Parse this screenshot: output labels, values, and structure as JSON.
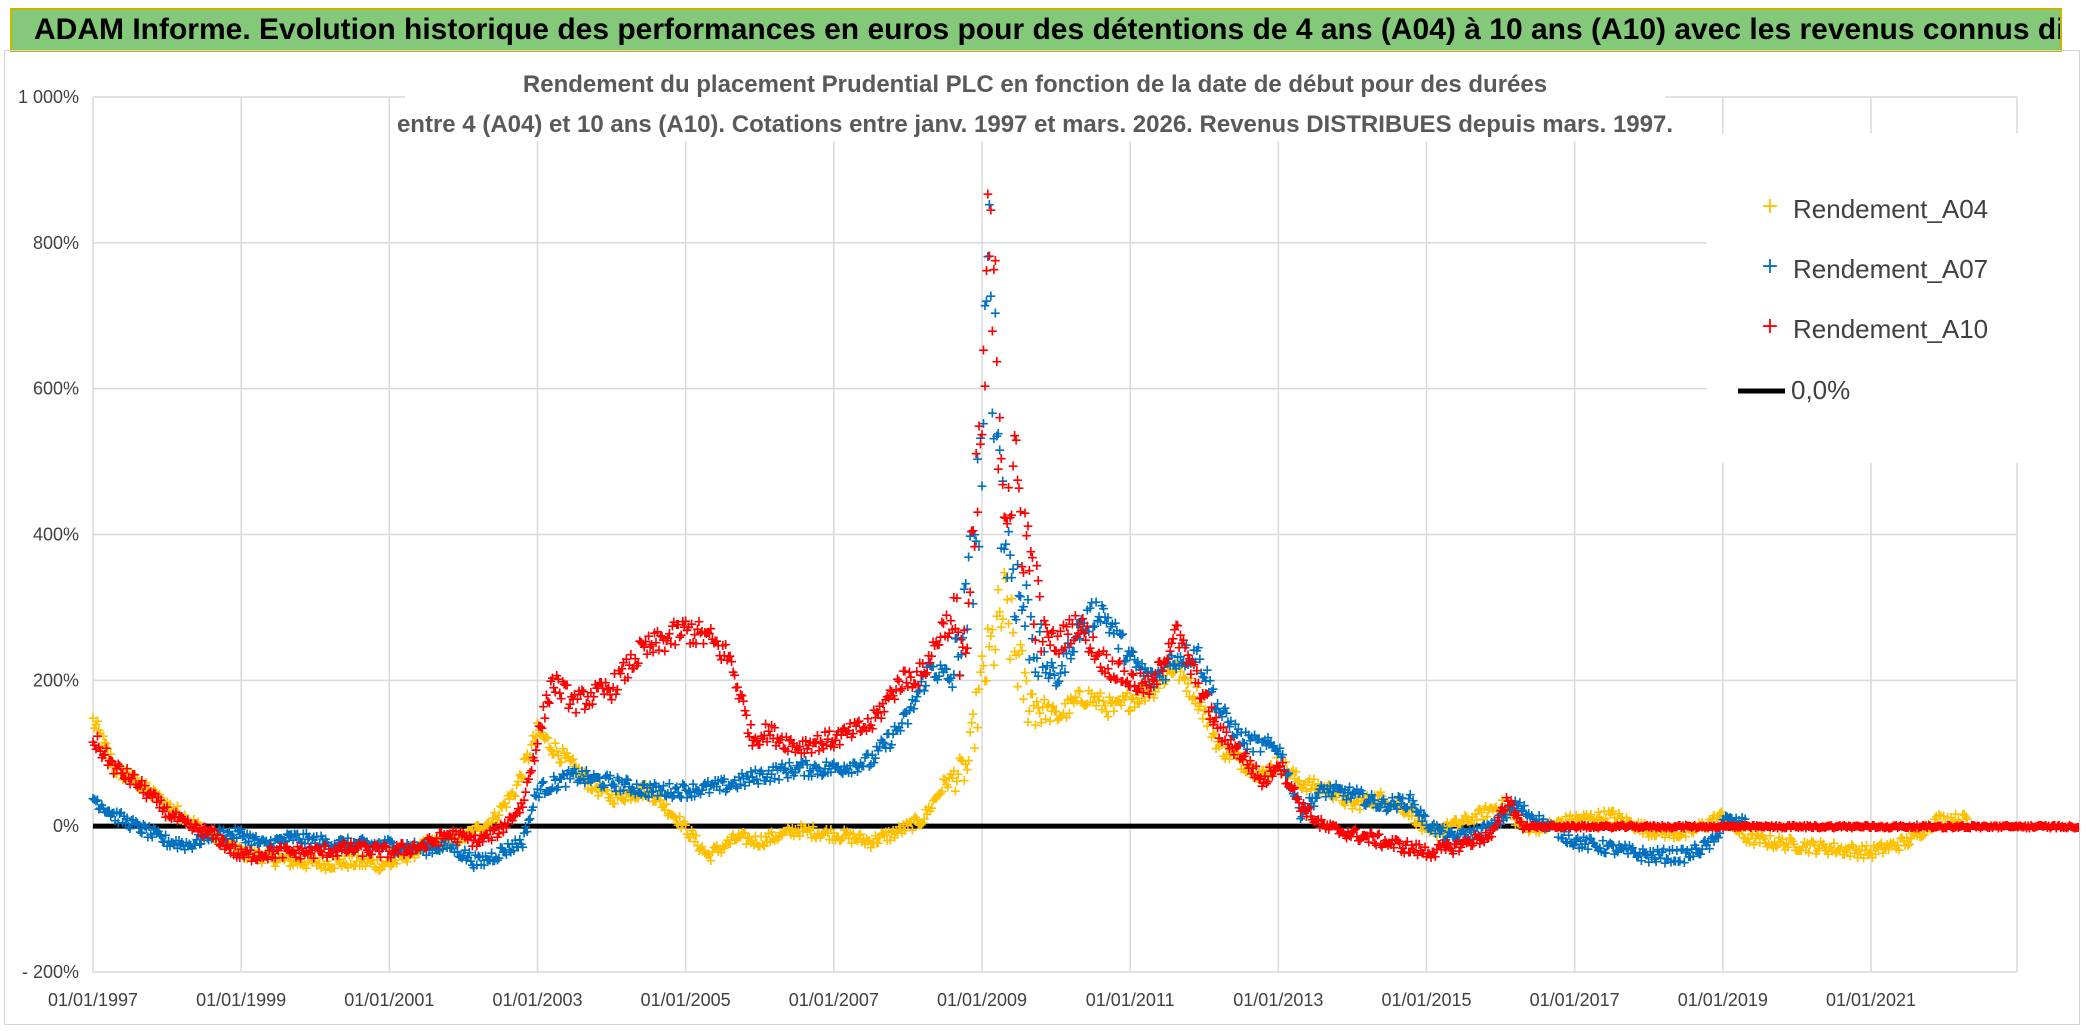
{
  "header": {
    "title": "ADAM Informe. Evolution historique des performances en euros pour des détentions de 4 ans (A04) à 10 ans (A10) avec les revenus connus distribués"
  },
  "colors": {
    "banner_bg": "#84c97a",
    "banner_border": "#c9b400",
    "A04": "#ffc000",
    "A07": "#0070c0",
    "A10": "#ff0000",
    "zero_line": "#000000",
    "grid": "#d9d9d9"
  },
  "chart_data": {
    "type": "scatter",
    "title_lines": [
      "Rendement du placement Prudential PLC en fonction de la date de début pour des durées",
      "entre 4 (A04) et 10 ans (A10). Cotations entre janv. 1997 et mars. 2026. Revenus DISTRIBUES depuis mars. 1997."
    ],
    "xlabel": "",
    "ylabel": "",
    "x_range": [
      1997.0,
      2022.0
    ],
    "ylim": [
      -200,
      1000
    ],
    "y_ticks": [
      -200,
      0,
      200,
      400,
      600,
      800,
      1000
    ],
    "y_tick_labels": [
      "- 200%",
      "0%",
      "200%",
      "400%",
      "600%",
      "800%",
      "1 000%"
    ],
    "x_ticks": [
      1997,
      1999,
      2001,
      2003,
      2005,
      2007,
      2009,
      2011,
      2013,
      2015,
      2017,
      2019,
      2021
    ],
    "x_tick_labels": [
      "01/01/1997",
      "01/01/1999",
      "01/01/2001",
      "01/01/2003",
      "01/01/2005",
      "01/01/2007",
      "01/01/2009",
      "01/01/2011",
      "01/01/2013",
      "01/01/2015",
      "01/01/2017",
      "01/01/2019",
      "01/01/2021"
    ],
    "legend_position": "top-right",
    "series": [
      {
        "name": "Rendement_A04",
        "color": "#ffc000",
        "x": [
          1997.0,
          1997.3,
          1997.6,
          1998.0,
          1998.5,
          1999.0,
          1999.5,
          2000.0,
          2000.5,
          2001.0,
          2001.5,
          2002.0,
          2002.4,
          2002.7,
          2003.0,
          2003.3,
          2003.7,
          2004.0,
          2004.5,
          2004.9,
          2005.3,
          2005.7,
          2006.0,
          2006.5,
          2007.0,
          2007.5,
          2007.8,
          2008.2,
          2008.5,
          2008.8,
          2009.0,
          2009.3,
          2009.6,
          2010.0,
          2010.4,
          2010.8,
          2011.0,
          2011.3,
          2011.6,
          2011.9,
          2012.2,
          2012.5,
          2012.8,
          2013.0,
          2013.3,
          2013.7,
          2014.0,
          2014.4,
          2014.8,
          2015.0,
          2015.3,
          2015.6,
          2016.0,
          2016.3,
          2016.6,
          2017.0,
          2017.5,
          2018.0,
          2018.5,
          2019.0,
          2019.3,
          2019.6,
          2020.0,
          2020.5,
          2021.0,
          2021.5,
          2021.9
        ],
        "values": [
          145,
          80,
          60,
          30,
          -5,
          -35,
          -45,
          -50,
          -48,
          -52,
          -25,
          -15,
          10,
          50,
          130,
          100,
          60,
          40,
          50,
          10,
          -40,
          -15,
          -20,
          -5,
          -10,
          -20,
          -10,
          10,
          60,
          80,
          200,
          300,
          180,
          150,
          180,
          160,
          175,
          190,
          220,
          180,
          110,
          90,
          70,
          90,
          60,
          50,
          30,
          40,
          20,
          -10,
          0,
          10,
          30,
          0,
          0,
          10,
          15,
          -5,
          -10,
          15,
          -15,
          -20,
          -25,
          -30,
          -35,
          -20,
          10
        ]
      },
      {
        "name": "Rendement_A07",
        "color": "#0070c0",
        "x": [
          1997.0,
          1997.3,
          1997.6,
          1998.0,
          1998.3,
          1998.6,
          1999.0,
          1999.3,
          1999.7,
          2000.0,
          2000.5,
          2001.0,
          2001.5,
          2001.8,
          2002.2,
          2002.5,
          2002.8,
          2003.0,
          2003.5,
          2004.0,
          2004.5,
          2005.0,
          2005.5,
          2006.0,
          2006.5,
          2007.0,
          2007.5,
          2008.0,
          2008.3,
          2008.6,
          2008.8,
          2009.0,
          2009.1,
          2009.3,
          2009.5,
          2009.8,
          2010.0,
          2010.3,
          2010.6,
          2011.0,
          2011.3,
          2011.6,
          2011.9,
          2012.2,
          2012.5,
          2012.8,
          2013.0,
          2013.3,
          2013.6,
          2014.0,
          2014.4,
          2014.8,
          2015.0,
          2015.3,
          2015.6,
          2015.9,
          2016.2,
          2016.5,
          2017.0,
          2017.5,
          2018.0,
          2018.5,
          2018.9,
          2019.0,
          2019.2
        ],
        "values": [
          40,
          15,
          0,
          -20,
          -25,
          -10,
          -10,
          -25,
          -15,
          -20,
          -25,
          -25,
          -30,
          -25,
          -50,
          -35,
          -20,
          50,
          70,
          60,
          50,
          50,
          55,
          70,
          80,
          80,
          90,
          150,
          220,
          200,
          300,
          500,
          760,
          400,
          320,
          230,
          200,
          270,
          300,
          230,
          200,
          230,
          240,
          160,
          120,
          110,
          110,
          20,
          50,
          45,
          30,
          35,
          5,
          -15,
          -10,
          0,
          30,
          10,
          -20,
          -30,
          -40,
          -40,
          -20,
          10,
          5
        ]
      },
      {
        "name": "Rendement_A10",
        "color": "#ff0000",
        "x": [
          1997.0,
          1997.3,
          1997.6,
          1998.0,
          1998.3,
          1998.6,
          1999.0,
          1999.5,
          2000.0,
          2000.5,
          2001.0,
          2001.5,
          2001.8,
          2002.2,
          2002.5,
          2002.8,
          2003.0,
          2003.2,
          2003.5,
          2004.0,
          2004.4,
          2004.8,
          2005.0,
          2005.3,
          2005.6,
          2005.9,
          2006.1,
          2006.5,
          2007.0,
          2007.5,
          2007.9,
          2008.2,
          2008.5,
          2008.8,
          2009.0,
          2009.1,
          2009.3,
          2009.5,
          2009.8,
          2010.0,
          2010.3,
          2010.6,
          2011.0,
          2011.3,
          2011.6,
          2011.9,
          2012.2,
          2012.5,
          2012.8,
          2013.0,
          2013.3,
          2013.6,
          2014.0,
          2014.4,
          2014.8,
          2015.0,
          2015.3,
          2015.6,
          2015.9,
          2016.1,
          2016.3,
          2016.6,
          2017.0,
          2018.0,
          2019.0,
          2020.0,
          2021.0,
          2021.9
        ],
        "values": [
          120,
          80,
          60,
          20,
          0,
          -10,
          -40,
          -35,
          -35,
          -30,
          -35,
          -25,
          -10,
          -20,
          -5,
          30,
          120,
          200,
          170,
          190,
          240,
          260,
          270,
          260,
          230,
          120,
          130,
          110,
          120,
          140,
          200,
          210,
          280,
          250,
          550,
          790,
          480,
          450,
          270,
          250,
          280,
          230,
          200,
          190,
          270,
          200,
          130,
          100,
          60,
          90,
          30,
          0,
          -10,
          -20,
          -30,
          -35,
          -30,
          -20,
          -10,
          40,
          0,
          0,
          0,
          0,
          0,
          0,
          0,
          0
        ]
      }
    ],
    "reference_line": {
      "name": "0,0%",
      "value": 0,
      "color": "#000000"
    },
    "legend": [
      {
        "label": "Rendement_A04",
        "color": "#ffc000",
        "marker": "plus"
      },
      {
        "label": "Rendement_A07",
        "color": "#0070c0",
        "marker": "plus"
      },
      {
        "label": "Rendement_A10",
        "color": "#ff0000",
        "marker": "plus"
      },
      {
        "label": "0,0%",
        "color": "#000000",
        "marker": "line"
      }
    ]
  }
}
